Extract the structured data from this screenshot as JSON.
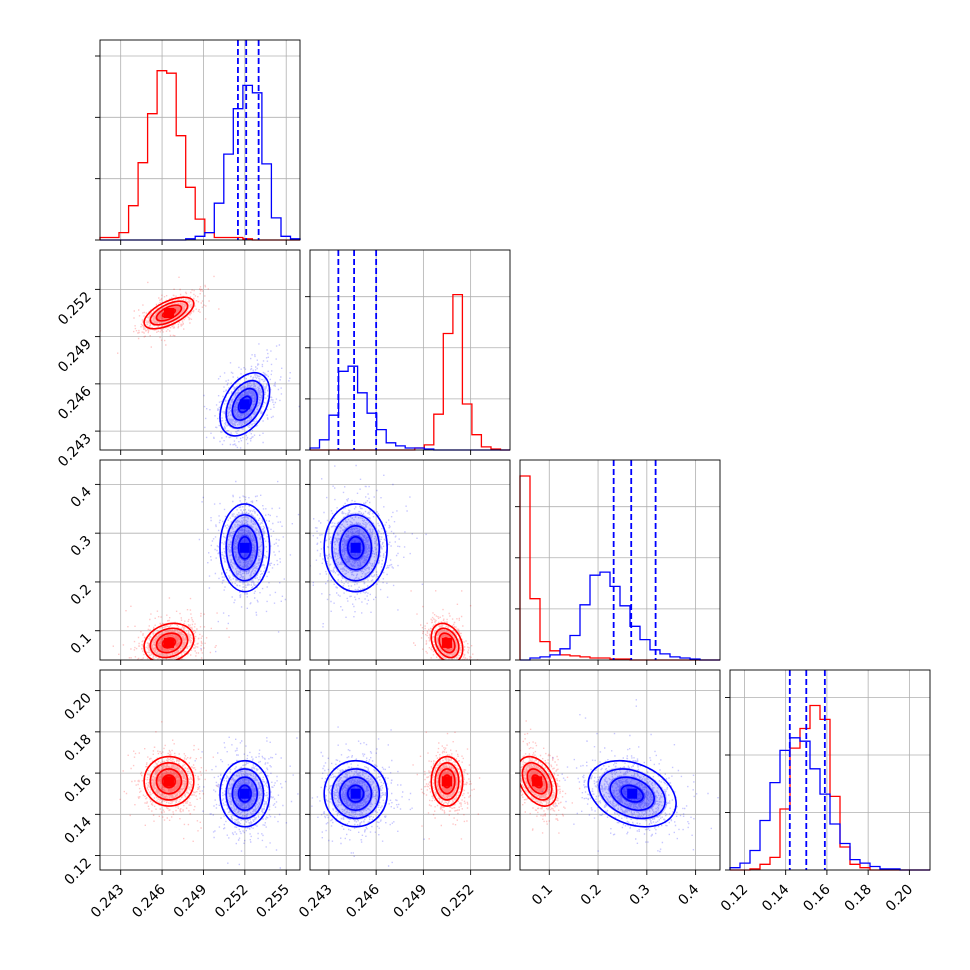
{
  "colors": {
    "red": "#ff0000",
    "blue": "#0000ff",
    "grid": "#b0b0b0",
    "axis": "#000000"
  },
  "chart_data": {
    "type": "corner",
    "title": "",
    "grid": true,
    "parameters": [
      {
        "range": [
          0.2415,
          0.256
        ],
        "ticks": [
          0.243,
          0.246,
          0.249,
          0.252,
          0.255
        ],
        "tick_labels": [
          "0.243",
          "0.246",
          "0.249",
          "0.252",
          "0.255"
        ]
      },
      {
        "range": [
          0.2418,
          0.2545
        ],
        "ticks": [
          0.243,
          0.246,
          0.249,
          0.252
        ],
        "tick_labels": [
          "0.243",
          "0.246",
          "0.249",
          "0.252"
        ]
      },
      {
        "range": [
          0.04,
          0.45
        ],
        "ticks": [
          0.1,
          0.2,
          0.3,
          0.4
        ],
        "tick_labels": [
          "0.1",
          "0.2",
          "0.3",
          "0.4"
        ]
      },
      {
        "range": [
          0.113,
          0.21
        ],
        "ticks": [
          0.12,
          0.14,
          0.16,
          0.18,
          0.2
        ],
        "tick_labels": [
          "0.12",
          "0.14",
          "0.16",
          "0.18",
          "0.20"
        ]
      }
    ],
    "series": [
      {
        "color": "red",
        "means": [
          0.2465,
          0.2505,
          0.075,
          0.156
        ],
        "sds": [
          0.0009,
          0.0005,
          0.02,
          0.006
        ],
        "correlations": {
          "0-1": 0.6,
          "0-2": 0.2,
          "0-3": 0.0,
          "1-2": -0.3,
          "1-3": 0.0,
          "2-3": -0.4
        }
      },
      {
        "color": "blue",
        "means": [
          0.252,
          0.2447,
          0.27,
          0.15
        ],
        "sds": [
          0.0009,
          0.001,
          0.045,
          0.008
        ],
        "correlations": {
          "0-1": 0.4,
          "0-2": 0.0,
          "0-3": 0.0,
          "1-2": 0.0,
          "1-3": 0.0,
          "2-3": -0.3
        }
      }
    ],
    "quantile_lines": {
      "color": "blue",
      "values": [
        [
          0.2515,
          0.2521,
          0.253
        ],
        [
          0.2436,
          0.2446,
          0.246
        ],
        [
          0.232,
          0.268,
          0.318
        ],
        [
          0.142,
          0.15,
          0.159
        ]
      ]
    },
    "histograms": [
      {
        "y_ticks": [
          0,
          0.5,
          1.0,
          1.5
        ],
        "ymax": 1.5,
        "red": [
          0.02,
          0.02,
          0.06,
          0.28,
          0.63,
          1.03,
          1.38,
          1.36,
          0.85,
          0.43,
          0.17,
          0.06,
          0.02,
          0.02,
          0.02,
          0.01,
          0.0,
          0.0,
          0.0,
          0.0,
          0.0
        ],
        "blue": [
          0.0,
          0.0,
          0.0,
          0.0,
          0.0,
          0.0,
          0.0,
          0.0,
          0.0,
          0.01,
          0.03,
          0.06,
          0.3,
          0.7,
          1.07,
          1.26,
          1.2,
          0.62,
          0.18,
          0.03,
          0.01
        ]
      },
      {
        "y_ticks": [
          0,
          0.5,
          1.0,
          1.5
        ],
        "ymax": 1.8,
        "red": [
          0.0,
          0.0,
          0.0,
          0.0,
          0.0,
          0.0,
          0.0,
          0.0,
          0.0,
          0.0,
          0.0,
          0.02,
          0.05,
          0.35,
          1.14,
          1.52,
          0.45,
          0.15,
          0.03,
          0.01,
          0.0
        ],
        "blue": [
          0.02,
          0.1,
          0.34,
          0.77,
          0.82,
          0.56,
          0.36,
          0.2,
          0.07,
          0.04,
          0.02,
          0.02,
          0.01,
          0.0,
          0.0,
          0.0,
          0.0,
          0.0,
          0.0,
          0.0,
          0.0
        ]
      },
      {
        "y_ticks": [
          0,
          0.5,
          1.0,
          1.5
        ],
        "ymax": 1.8,
        "red": [
          1.8,
          0.6,
          0.18,
          0.09,
          0.05,
          0.04,
          0.03,
          0.02,
          0.02,
          0.01,
          0.01,
          0.0,
          0.0,
          0.0,
          0.0,
          0.0,
          0.0,
          0.0,
          0.0,
          0.0
        ],
        "blue": [
          0.0,
          0.02,
          0.03,
          0.05,
          0.11,
          0.24,
          0.54,
          0.83,
          0.86,
          0.72,
          0.53,
          0.33,
          0.2,
          0.1,
          0.06,
          0.03,
          0.02,
          0.01,
          0.0,
          0.0
        ]
      },
      {
        "y_ticks": [
          0,
          0.5,
          1.0,
          1.5
        ],
        "ymax": 1.6,
        "red": [
          0.0,
          0.0,
          0.01,
          0.05,
          0.11,
          0.53,
          1.06,
          1.23,
          1.43,
          1.31,
          0.64,
          0.2,
          0.05,
          0.02,
          0.0,
          0.0,
          0.0,
          0.0,
          0.0,
          0.0
        ],
        "blue": [
          0.02,
          0.06,
          0.17,
          0.43,
          0.76,
          1.04,
          1.15,
          1.12,
          0.88,
          0.66,
          0.4,
          0.23,
          0.09,
          0.06,
          0.03,
          0.01,
          0.01,
          0.0,
          0.0,
          0.0
        ]
      }
    ]
  }
}
